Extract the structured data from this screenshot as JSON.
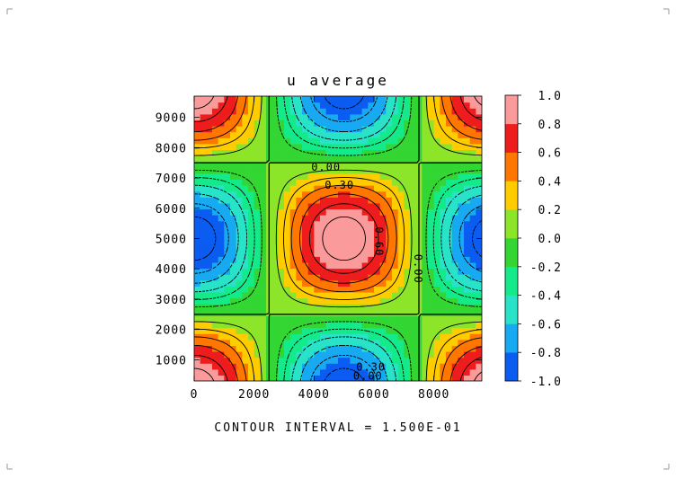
{
  "chart_data": {
    "type": "heatmap",
    "title": "u average",
    "note": "CONTOUR INTERVAL = 1.500E-01",
    "xlim": [
      0,
      9600
    ],
    "ylim": [
      300,
      9700
    ],
    "x_ticks": [
      0,
      2000,
      4000,
      6000,
      8000
    ],
    "x_tick_labels": [
      "0",
      "2000",
      "4000",
      "6000",
      "8000"
    ],
    "y_ticks": [
      1000,
      2000,
      3000,
      4000,
      5000,
      6000,
      7000,
      8000,
      9000
    ],
    "y_tick_labels": [
      "1000",
      "2000",
      "3000",
      "4000",
      "5000",
      "6000",
      "7000",
      "8000",
      "9000"
    ],
    "field": "u = cos(2*pi*(x-5000)/10000) * cos(2*pi*(y-5000)/10000)",
    "colorbar": {
      "levels": [
        -1.0,
        -0.8,
        -0.6,
        -0.4,
        -0.2,
        0.0,
        0.2,
        0.4,
        0.6,
        0.8,
        1.0
      ],
      "labels": [
        "1.0",
        "0.8",
        "0.6",
        "0.4",
        "0.2",
        "0.0",
        "-0.2",
        "-0.4",
        "-0.6",
        "-0.8",
        "-1.0"
      ],
      "colors": [
        "#0b5cf0",
        "#18a9f3",
        "#29e3c8",
        "#14ea8a",
        "#33d633",
        "#8de52a",
        "#ffcc00",
        "#ff7700",
        "#ee1c1c",
        "#fb9a9a"
      ]
    },
    "contour_levels": [
      -0.9,
      -0.75,
      -0.6,
      -0.45,
      -0.3,
      -0.15,
      0.0,
      0.15,
      0.3,
      0.45,
      0.6,
      0.75,
      0.9
    ],
    "contour_labels": [
      {
        "text": "0.00",
        "x": 4400,
        "y": 7350
      },
      {
        "text": "0.30",
        "x": 4850,
        "y": 6750
      },
      {
        "text": "0.60",
        "x": 6150,
        "y": 4900,
        "rotate": 90
      },
      {
        "text": "0.00",
        "x": 7450,
        "y": 4000,
        "rotate": 90
      },
      {
        "text": "0.30",
        "x": 5900,
        "y": 750
      },
      {
        "text": "0.00",
        "x": 5800,
        "y": 450
      }
    ]
  }
}
